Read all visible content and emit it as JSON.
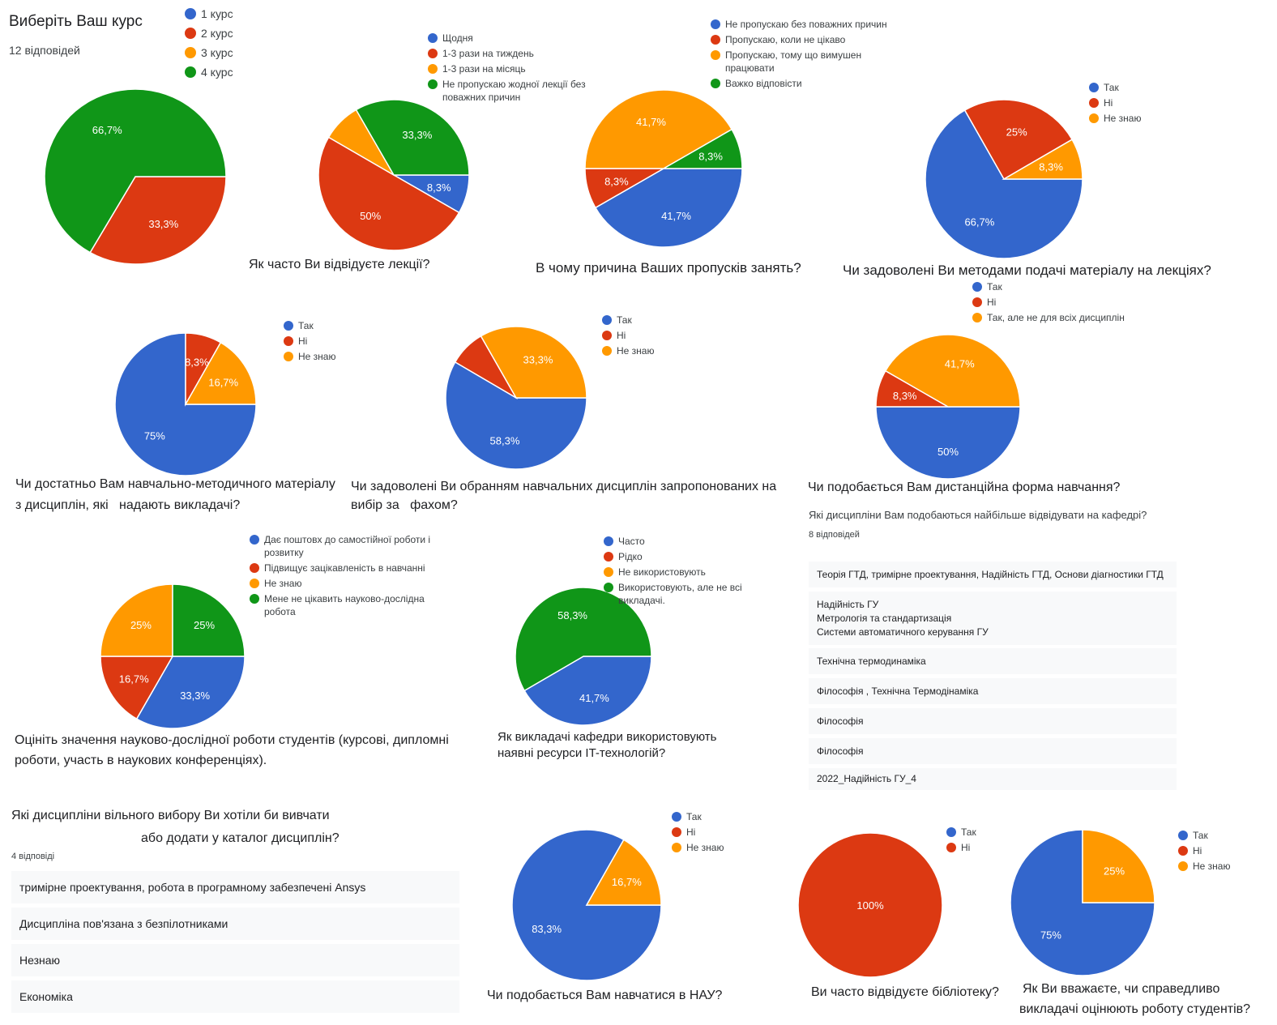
{
  "colors": {
    "blue": "#3366cc",
    "red": "#dc3912",
    "orange": "#ff9900",
    "green": "#109618"
  },
  "header": {
    "title": "Виберіть Ваш курс",
    "responses": "12 відповідей"
  },
  "chart_data": [
    {
      "type": "pie",
      "title": "Виберіть Ваш курс",
      "legend": [
        "1 курс",
        "2 курс",
        "3 курс",
        "4 курс"
      ],
      "values": [
        0,
        33.3,
        0,
        66.7
      ],
      "labels": [
        "",
        "33,3%",
        "",
        "66,7%"
      ],
      "legend_position": "top-right"
    },
    {
      "type": "pie",
      "title": "Як часто Ви відвідуєте лекції?",
      "legend": [
        "Щодня",
        "1-3 рази на тиждень",
        "1-3 рази на місяць",
        "Не пропускаю жодної лекції без поважних причин"
      ],
      "values": [
        8.3,
        50,
        8.3,
        33.3
      ],
      "labels": [
        "8,3%",
        "50%",
        "",
        "33,3%"
      ],
      "legend_position": "top-right"
    },
    {
      "type": "pie",
      "title": "В чому причина Ваших пропусків занять?",
      "legend": [
        "Не пропускаю без поважних причин",
        "Пропускаю, коли не цікаво",
        "Пропускаю, тому що вимушен працювати",
        "Важко відповісти"
      ],
      "values": [
        41.7,
        8.3,
        41.7,
        8.3
      ],
      "labels": [
        "41,7%",
        "8,3%",
        "41,7%",
        "8,3%"
      ],
      "legend_position": "top-right"
    },
    {
      "type": "pie",
      "title": "Чи задоволені Ви методами подачі матеріалу на лекціях?",
      "legend": [
        "Так",
        "Ні",
        "Не знаю"
      ],
      "values": [
        66.7,
        25,
        8.3
      ],
      "labels": [
        "66,7%",
        "25%",
        "8,3%"
      ],
      "legend_position": "top-right"
    },
    {
      "type": "pie",
      "title": "Чи достатньо Вам навчально-методичного матеріалу з дисциплін, які   надають викладачі?",
      "legend": [
        "Так",
        "Ні",
        "Не знаю"
      ],
      "values": [
        75,
        8.3,
        16.7
      ],
      "labels": [
        "75%",
        "8,3%",
        "16,7%"
      ],
      "legend_position": "top-right"
    },
    {
      "type": "pie",
      "title": "Чи задоволені Ви обранням навчальних дисциплін запропонованих на вибір за   фахом?",
      "legend": [
        "Так",
        "Ні",
        "Не знаю"
      ],
      "values": [
        58.3,
        8.3,
        33.3
      ],
      "labels": [
        "58,3%",
        "",
        "33,3%"
      ],
      "legend_position": "top-right"
    },
    {
      "type": "pie",
      "title": "Чи подобається Вам дистанційна форма навчання?",
      "legend": [
        "Так",
        "Ні",
        "Так, але не для всіх дисциплін"
      ],
      "values": [
        50,
        8.3,
        41.7
      ],
      "labels": [
        "50%",
        "8,3%",
        "41,7%"
      ],
      "legend_position": "top-right"
    },
    {
      "type": "pie",
      "title": "Оцініть значення науково-дослідної роботи студентів (курсові, дипломні роботи, участь в наукових конференціях).",
      "legend": [
        "Дає поштовх до самостійної роботи і розвитку",
        "Підвищує зацікавленість в навчанні",
        "Не знаю",
        "Мене не цікавить науково-дослідна робота"
      ],
      "values": [
        33.3,
        16.7,
        25,
        25
      ],
      "labels": [
        "33,3%",
        "16,7%",
        "25%",
        "25%"
      ],
      "legend_position": "top-right"
    },
    {
      "type": "pie",
      "title": "Як викладачі кафедри використовують наявні ресурси IT-технологій?",
      "legend": [
        "Часто",
        "Рідко",
        "Не використовують",
        "Використовують, але не всі викладачі."
      ],
      "values": [
        41.7,
        0,
        0,
        58.3
      ],
      "labels": [
        "41,7%",
        "",
        "",
        "58,3%"
      ],
      "legend_position": "top-right"
    },
    {
      "type": "pie",
      "title": "Чи подобається Вам навчатися в НАУ?",
      "legend": [
        "Так",
        "Ні",
        "Не знаю"
      ],
      "values": [
        83.3,
        0,
        16.7
      ],
      "labels": [
        "83,3%",
        "",
        "16,7%"
      ],
      "legend_position": "top-right"
    },
    {
      "type": "pie",
      "title": "Ви часто відвідуєте бібліотеку?",
      "legend": [
        "Так",
        "Ні"
      ],
      "values": [
        0,
        100
      ],
      "labels": [
        "",
        "100%"
      ],
      "legend_position": "top-right"
    },
    {
      "type": "pie",
      "title": "Як Ви вважаєте, чи справедливо викладачі оцінюють роботу студентів?",
      "legend": [
        "Так",
        "Ні",
        "Не знаю"
      ],
      "values": [
        75,
        0,
        25
      ],
      "labels": [
        "75%",
        "",
        "25%"
      ],
      "legend_position": "top-right"
    }
  ],
  "questions": {
    "q2": "Як часто Ви відвідуєте лекції?",
    "q3": "В чому причина Ваших пропусків занять?",
    "q4": "Чи задоволені Ви методами подачі матеріалу на лекціях?",
    "q5_line1": "Чи достатньо Вам навчально-методичного матеріалу",
    "q5_line2": "з дисциплін, які   надають викладачі?",
    "q6_line1": "Чи задоволені Ви обранням навчальних дисциплін запропонованих на",
    "q6_line2": "вибір за   фахом?",
    "q7": "Чи подобається Вам дистанційна форма навчання?",
    "q8_line1": "Оцініть значення науково-дослідної роботи студентів (курсові, дипломні",
    "q8_line2": "роботи, участь в наукових конференціях).",
    "q9_line1": "Як викладачі кафедри використовують",
    "q9_line2": "наявні ресурси IT-технологій?",
    "q10": "Чи подобається Вам навчатися в НАУ?",
    "q11": "Ви часто відвідуєте бібліотеку?",
    "q12_line1": "Як Ви вважаєте, чи справедливо",
    "q12_line2": "викладачі оцінюють роботу студентів?"
  },
  "text_answers_1": {
    "question": "Які дисципліни Вам подобаються найбільше відвідувати на кафедрі?",
    "count": "8 відповідей",
    "answers": [
      [
        "Теорія ГТД, тримірне проектування, Надійність ГТД, Основи діагностики ГТД"
      ],
      [
        "Надійність ГУ",
        "Метрологія та стандартизація",
        "Системи автоматичного керування ГУ"
      ],
      [
        "Технічна термодинаміка"
      ],
      [
        "Філософія , Технічна Термодінаміка"
      ],
      [
        "Філософія"
      ],
      [
        "Філософія"
      ],
      [
        "2022_Надійність ГУ_4"
      ]
    ]
  },
  "text_answers_2": {
    "question_line1": "Які дисципліни вільного вибору Ви хотіли би вивчати",
    "question_line2": "або додати у каталог дисциплін?",
    "count": "4 відповіді",
    "answers": [
      "тримірне проектування, робота в програмному забезпечені Ansys",
      "Дисципліна пов'язана з безпілотниками",
      "Незнаю",
      "Економіка"
    ]
  }
}
